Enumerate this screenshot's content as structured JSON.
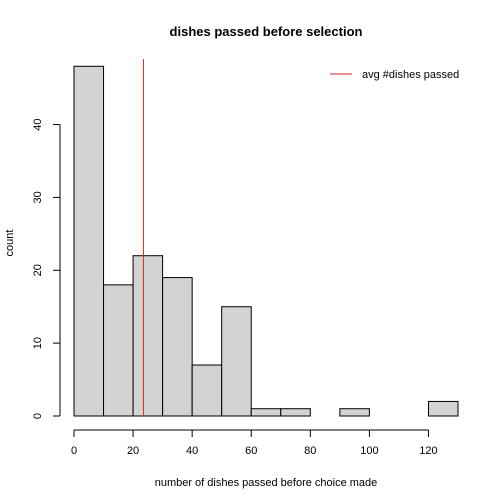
{
  "chart_data": {
    "type": "bar",
    "subtype": "histogram",
    "title": "dishes passed before selection",
    "xlabel": "number of dishes passed before choice made",
    "ylabel": "count",
    "bins": [
      {
        "x0": 0,
        "x1": 10,
        "count": 48
      },
      {
        "x0": 10,
        "x1": 20,
        "count": 18
      },
      {
        "x0": 20,
        "x1": 30,
        "count": 22
      },
      {
        "x0": 30,
        "x1": 40,
        "count": 19
      },
      {
        "x0": 40,
        "x1": 50,
        "count": 7
      },
      {
        "x0": 50,
        "x1": 60,
        "count": 15
      },
      {
        "x0": 60,
        "x1": 70,
        "count": 1
      },
      {
        "x0": 70,
        "x1": 80,
        "count": 1
      },
      {
        "x0": 80,
        "x1": 90,
        "count": 0
      },
      {
        "x0": 90,
        "x1": 100,
        "count": 1
      },
      {
        "x0": 100,
        "x1": 110,
        "count": 0
      },
      {
        "x0": 110,
        "x1": 120,
        "count": 0
      },
      {
        "x0": 120,
        "x1": 130,
        "count": 2
      }
    ],
    "xlim": [
      0,
      130
    ],
    "ylim": [
      0,
      49
    ],
    "x_ticks": [
      0,
      20,
      40,
      60,
      80,
      100,
      120
    ],
    "y_ticks": [
      0,
      10,
      20,
      30,
      40
    ],
    "reference_line": {
      "label": "avg #dishes passed",
      "x": 23.5,
      "color": "#d62728"
    },
    "bar_color": "#d3d3d3",
    "legend_position": "top-right",
    "grid": false
  }
}
